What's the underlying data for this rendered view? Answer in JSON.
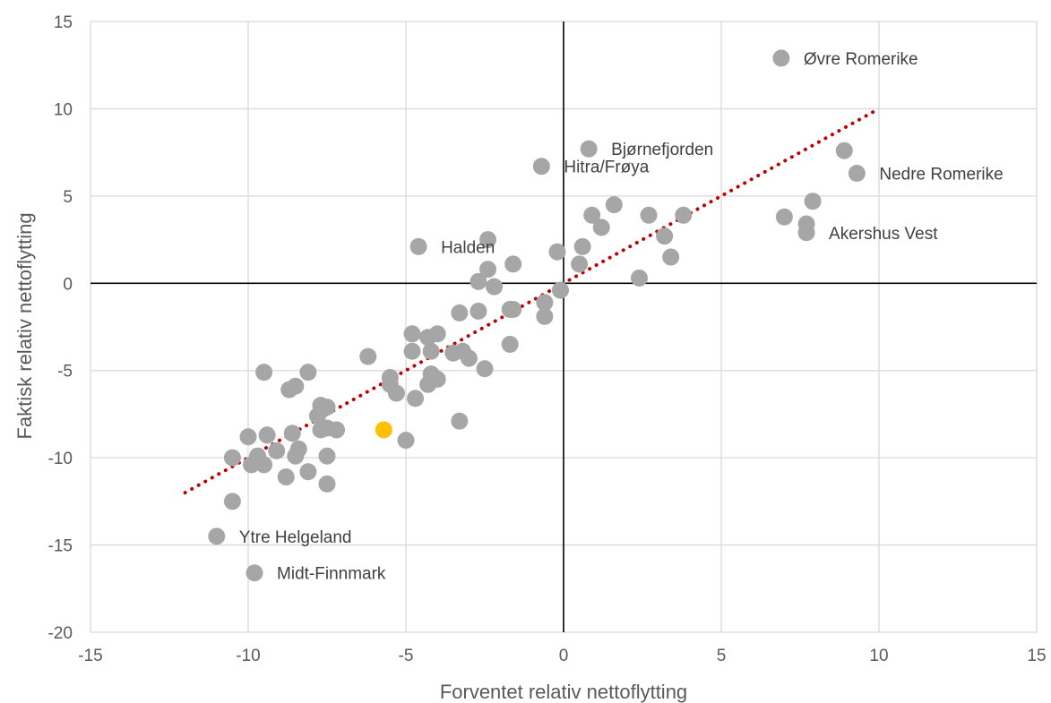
{
  "chart_data": {
    "type": "scatter",
    "title": "",
    "xlabel": "Forventet relativ nettoflytting",
    "ylabel": "Faktisk relativ nettoflytting",
    "xlim": [
      -15,
      15
    ],
    "ylim": [
      -20,
      15
    ],
    "xticks": [
      "-15",
      "-10",
      "-5",
      "0",
      "5",
      "10",
      "15"
    ],
    "yticks": [
      "-20",
      "-15",
      "-10",
      "-5",
      "0",
      "5",
      "10",
      "15"
    ],
    "grid": true,
    "legend": "none",
    "colors": {
      "points": "#a6a6a6",
      "highlight": "#ffc000",
      "trend": "#c00000",
      "grid": "#d9d9d9",
      "axis": "#000000"
    },
    "trendline": {
      "x": [
        -12,
        10
      ],
      "y": [
        -12,
        10
      ],
      "style": "dotted"
    },
    "highlight": {
      "x": -5.7,
      "y": -8.4
    },
    "labeled_points": [
      {
        "x": 6.9,
        "y": 12.9,
        "label": "Øvre Romerike"
      },
      {
        "x": 0.8,
        "y": 7.7,
        "label": "Bjørnefjorden"
      },
      {
        "x": -0.7,
        "y": 6.7,
        "label": "Hitra/Frøya"
      },
      {
        "x": 9.3,
        "y": 6.3,
        "label": "Nedre Romerike"
      },
      {
        "x": 7.7,
        "y": 2.9,
        "label": "Akershus Vest"
      },
      {
        "x": -4.6,
        "y": 2.1,
        "label": "Halden"
      },
      {
        "x": -11.0,
        "y": -14.5,
        "label": "Ytre Helgeland"
      },
      {
        "x": -9.8,
        "y": -16.6,
        "label": "Midt-Finnmark"
      }
    ],
    "points": [
      [
        8.9,
        7.6
      ],
      [
        7.9,
        4.7
      ],
      [
        7.0,
        3.8
      ],
      [
        7.7,
        3.4
      ],
      [
        3.8,
        3.9
      ],
      [
        2.7,
        3.9
      ],
      [
        3.2,
        2.7
      ],
      [
        3.4,
        1.5
      ],
      [
        2.4,
        0.3
      ],
      [
        0.9,
        3.9
      ],
      [
        1.6,
        4.5
      ],
      [
        1.2,
        3.2
      ],
      [
        0.6,
        2.1
      ],
      [
        0.5,
        1.1
      ],
      [
        -0.2,
        1.8
      ],
      [
        -0.1,
        -0.4
      ],
      [
        -0.6,
        -1.1
      ],
      [
        -0.6,
        -1.9
      ],
      [
        -2.4,
        2.5
      ],
      [
        -2.4,
        0.8
      ],
      [
        -2.2,
        -0.2
      ],
      [
        -2.7,
        0.1
      ],
      [
        -2.7,
        -1.6
      ],
      [
        -1.6,
        1.1
      ],
      [
        -1.6,
        -1.5
      ],
      [
        -1.7,
        -1.5
      ],
      [
        -1.7,
        -3.5
      ],
      [
        -3.3,
        -1.7
      ],
      [
        -3.2,
        -3.9
      ],
      [
        -3.5,
        -4.0
      ],
      [
        -3.0,
        -4.3
      ],
      [
        -2.5,
        -4.9
      ],
      [
        -3.3,
        -7.9
      ],
      [
        -4.0,
        -2.9
      ],
      [
        -4.3,
        -3.1
      ],
      [
        -4.2,
        -3.9
      ],
      [
        -4.2,
        -5.2
      ],
      [
        -4.8,
        -2.9
      ],
      [
        -4.8,
        -3.9
      ],
      [
        -4.0,
        -5.5
      ],
      [
        -4.3,
        -5.8
      ],
      [
        -4.7,
        -6.6
      ],
      [
        -5.5,
        -5.4
      ],
      [
        -5.3,
        -6.3
      ],
      [
        -5.5,
        -5.8
      ],
      [
        -5.0,
        -9.0
      ],
      [
        -6.2,
        -4.2
      ],
      [
        -8.1,
        -5.1
      ],
      [
        -7.7,
        -7.0
      ],
      [
        -7.5,
        -7.1
      ],
      [
        -7.8,
        -7.6
      ],
      [
        -7.7,
        -8.4
      ],
      [
        -7.5,
        -8.3
      ],
      [
        -7.2,
        -8.4
      ],
      [
        -7.5,
        -9.9
      ],
      [
        -8.1,
        -10.8
      ],
      [
        -7.5,
        -11.5
      ],
      [
        -8.6,
        -8.6
      ],
      [
        -8.5,
        -9.9
      ],
      [
        -8.4,
        -9.5
      ],
      [
        -8.7,
        -6.1
      ],
      [
        -8.5,
        -5.9
      ],
      [
        -8.8,
        -11.1
      ],
      [
        -9.5,
        -5.1
      ],
      [
        -9.4,
        -8.7
      ],
      [
        -9.1,
        -9.6
      ],
      [
        -9.5,
        -10.4
      ],
      [
        -9.7,
        -9.9
      ],
      [
        -9.9,
        -10.4
      ],
      [
        -10.0,
        -8.8
      ],
      [
        -10.5,
        -10.0
      ],
      [
        -10.5,
        -12.5
      ]
    ]
  }
}
